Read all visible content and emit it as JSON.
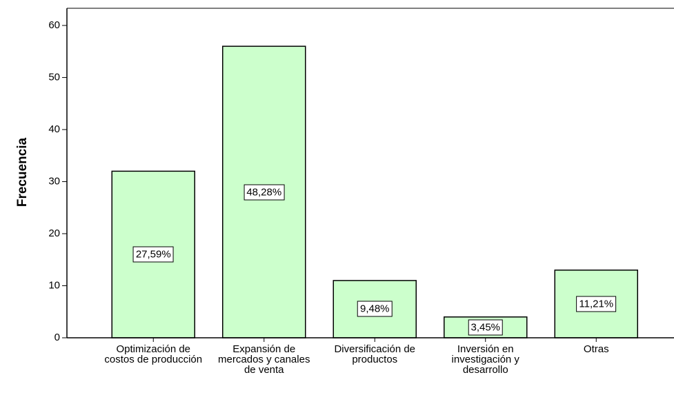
{
  "chart_data": {
    "type": "bar",
    "y_label": "Frecuencia",
    "categories": [
      "Optimización de costos de producción",
      "Expansión de mercados y canales de venta",
      "Diversificación de productos",
      "Inversión en investigación y desarrollo",
      "Otras"
    ],
    "values": [
      32,
      56,
      11,
      4,
      13
    ],
    "percent_labels": [
      "27,59%",
      "48,28%",
      "9,48%",
      "3,45%",
      "11,21%"
    ],
    "color": "#ccffcc",
    "ylim": [
      0,
      63.3
    ],
    "yticks": [
      0,
      10,
      20,
      30,
      40,
      50,
      60
    ],
    "grid": false
  }
}
